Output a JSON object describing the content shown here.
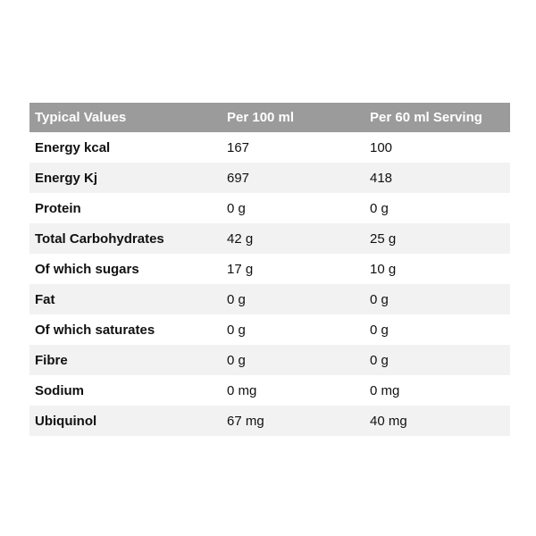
{
  "table": {
    "headers": [
      "Typical Values",
      "Per 100 ml",
      "Per 60 ml Serving"
    ],
    "rows": [
      [
        "Energy kcal",
        "167",
        "100"
      ],
      [
        "Energy Kj",
        "697",
        "418"
      ],
      [
        "Protein",
        "0 g",
        "0 g"
      ],
      [
        "Total Carbohydrates",
        "42 g",
        "25 g"
      ],
      [
        "Of which sugars",
        "17 g",
        "10 g"
      ],
      [
        "Fat",
        "0 g",
        "0 g"
      ],
      [
        "Of which saturates",
        "0 g",
        "0 g"
      ],
      [
        "Fibre",
        "0 g",
        "0 g"
      ],
      [
        "Sodium",
        "0 mg",
        "0 mg"
      ],
      [
        "Ubiquinol",
        "67 mg",
        "40 mg"
      ]
    ]
  },
  "colors": {
    "header_bg": "#9b9b9b",
    "header_text": "#ffffff",
    "stripe_bg": "#f2f2f2"
  }
}
